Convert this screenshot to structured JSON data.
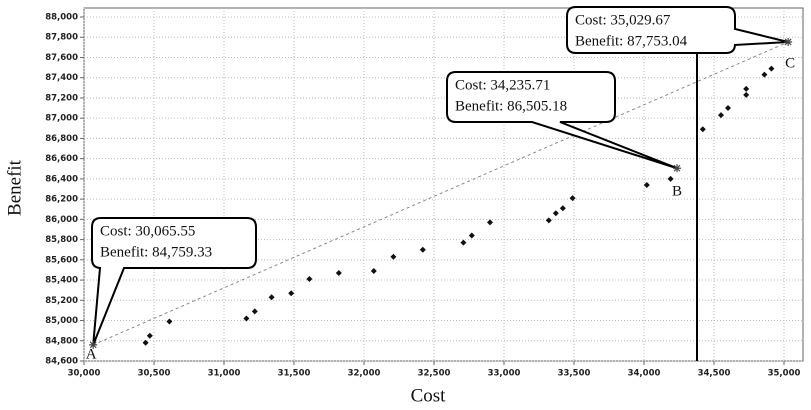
{
  "chart_data": {
    "type": "scatter",
    "x_label": "Cost",
    "y_label": "Benefit",
    "xlim": [
      30000,
      35150
    ],
    "ylim": [
      84600,
      88000
    ],
    "xticks": [
      {
        "value": 30000,
        "label": "30,000"
      },
      {
        "value": 30500,
        "label": "30,500"
      },
      {
        "value": 31000,
        "label": "31,000"
      },
      {
        "value": 31500,
        "label": "31,500"
      },
      {
        "value": 32000,
        "label": "32,000"
      },
      {
        "value": 32500,
        "label": "32,500"
      },
      {
        "value": 33000,
        "label": "33,000"
      },
      {
        "value": 33500,
        "label": "33,500"
      },
      {
        "value": 34000,
        "label": "34,000"
      },
      {
        "value": 34500,
        "label": "34,500"
      },
      {
        "value": 35000,
        "label": "35,000"
      }
    ],
    "yticks": [
      {
        "value": 84600,
        "label": "84,600"
      },
      {
        "value": 84800,
        "label": "84,800"
      },
      {
        "value": 85000,
        "label": "85,000"
      },
      {
        "value": 85200,
        "label": "85,200"
      },
      {
        "value": 85400,
        "label": "85,400"
      },
      {
        "value": 85600,
        "label": "85,600"
      },
      {
        "value": 85800,
        "label": "85,800"
      },
      {
        "value": 86000,
        "label": "86,000"
      },
      {
        "value": 86200,
        "label": "86,200"
      },
      {
        "value": 86400,
        "label": "86,400"
      },
      {
        "value": 86600,
        "label": "86,600"
      },
      {
        "value": 86800,
        "label": "86,800"
      },
      {
        "value": 87000,
        "label": "87,000"
      },
      {
        "value": 87200,
        "label": "87,200"
      },
      {
        "value": 87400,
        "label": "87,400"
      },
      {
        "value": 87600,
        "label": "87,600"
      },
      {
        "value": 87800,
        "label": "87,800"
      },
      {
        "value": 88000,
        "label": "88,000"
      }
    ],
    "grid": true,
    "color": "#111111",
    "x": [
      30440,
      30470,
      30610,
      31160,
      31220,
      31340,
      31480,
      31610,
      31820,
      32070,
      32210,
      32420,
      32710,
      32770,
      32900,
      33320,
      33370,
      33420,
      33490,
      34020,
      34190,
      34420,
      34550,
      34600,
      34730,
      34730,
      34860,
      34910
    ],
    "y": [
      84780,
      84850,
      84990,
      85020,
      85090,
      85230,
      85270,
      85410,
      85470,
      85490,
      85630,
      85700,
      85770,
      85840,
      85970,
      85990,
      86060,
      86110,
      86210,
      86340,
      86400,
      86890,
      87030,
      87100,
      87230,
      87290,
      87430,
      87490
    ],
    "annotations": [
      {
        "label": "A",
        "x": 30065.55,
        "y": 84759.33,
        "lines": [
          "Cost: 30,065.55",
          "Benefit: 84,759.33"
        ]
      },
      {
        "label": "B",
        "x": 34235.71,
        "y": 86505.18,
        "lines": [
          "Cost: 34,235.71",
          "Benefit: 86,505.18"
        ]
      },
      {
        "label": "C",
        "x": 35029.67,
        "y": 87753.04,
        "lines": [
          "Cost: 35,029.67",
          "Benefit: 87,753.04"
        ]
      }
    ]
  }
}
